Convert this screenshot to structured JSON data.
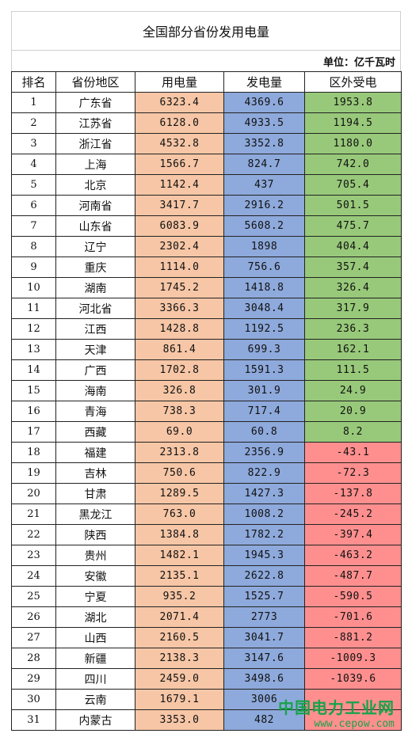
{
  "title": "全国部分省份发用电量",
  "unit": "单位：亿千瓦时",
  "headers": [
    "排名",
    "省份地区",
    "用电量",
    "发电量",
    "区外受电"
  ],
  "colors": {
    "consumption": "#f6c6a6",
    "generation": "#8ea9db",
    "import_positive": "#98c97a",
    "import_negative": "#ff8f8f",
    "watermark": "#17a34a"
  },
  "rows": [
    {
      "rank": "1",
      "region": "广东省",
      "consumption": "6323.4",
      "generation": "4369.6",
      "import": "1953.8"
    },
    {
      "rank": "2",
      "region": "江苏省",
      "consumption": "6128.0",
      "generation": "4933.5",
      "import": "1194.5"
    },
    {
      "rank": "3",
      "region": "浙江省",
      "consumption": "4532.8",
      "generation": "3352.8",
      "import": "1180.0"
    },
    {
      "rank": "4",
      "region": "上海",
      "consumption": "1566.7",
      "generation": "824.7",
      "import": "742.0"
    },
    {
      "rank": "5",
      "region": "北京",
      "consumption": "1142.4",
      "generation": "437",
      "import": "705.4"
    },
    {
      "rank": "6",
      "region": "河南省",
      "consumption": "3417.7",
      "generation": "2916.2",
      "import": "501.5"
    },
    {
      "rank": "7",
      "region": "山东省",
      "consumption": "6083.9",
      "generation": "5608.2",
      "import": "475.7"
    },
    {
      "rank": "8",
      "region": "辽宁",
      "consumption": "2302.4",
      "generation": "1898",
      "import": "404.4"
    },
    {
      "rank": "9",
      "region": "重庆",
      "consumption": "1114.0",
      "generation": "756.6",
      "import": "357.4"
    },
    {
      "rank": "10",
      "region": "湖南",
      "consumption": "1745.2",
      "generation": "1418.8",
      "import": "326.4"
    },
    {
      "rank": "11",
      "region": "河北省",
      "consumption": "3366.3",
      "generation": "3048.4",
      "import": "317.9"
    },
    {
      "rank": "12",
      "region": "江西",
      "consumption": "1428.8",
      "generation": "1192.5",
      "import": "236.3"
    },
    {
      "rank": "13",
      "region": "天津",
      "consumption": "861.4",
      "generation": "699.3",
      "import": "162.1"
    },
    {
      "rank": "14",
      "region": "广西",
      "consumption": "1702.8",
      "generation": "1591.3",
      "import": "111.5"
    },
    {
      "rank": "15",
      "region": "海南",
      "consumption": "326.8",
      "generation": "301.9",
      "import": "24.9"
    },
    {
      "rank": "16",
      "region": "青海",
      "consumption": "738.3",
      "generation": "717.4",
      "import": "20.9"
    },
    {
      "rank": "17",
      "region": "西藏",
      "consumption": "69.0",
      "generation": "60.8",
      "import": "8.2"
    },
    {
      "rank": "18",
      "region": "福建",
      "consumption": "2313.8",
      "generation": "2356.9",
      "import": "-43.1"
    },
    {
      "rank": "19",
      "region": "吉林",
      "consumption": "750.6",
      "generation": "822.9",
      "import": "-72.3"
    },
    {
      "rank": "20",
      "region": "甘肃",
      "consumption": "1289.5",
      "generation": "1427.3",
      "import": "-137.8"
    },
    {
      "rank": "21",
      "region": "黑龙江",
      "consumption": "763.0",
      "generation": "1008.2",
      "import": "-245.2"
    },
    {
      "rank": "22",
      "region": "陕西",
      "consumption": "1384.8",
      "generation": "1782.2",
      "import": "-397.4"
    },
    {
      "rank": "23",
      "region": "贵州",
      "consumption": "1482.1",
      "generation": "1945.3",
      "import": "-463.2"
    },
    {
      "rank": "24",
      "region": "安徽",
      "consumption": "2135.1",
      "generation": "2622.8",
      "import": "-487.7"
    },
    {
      "rank": "25",
      "region": "宁夏",
      "consumption": "935.2",
      "generation": "1525.7",
      "import": "-590.5"
    },
    {
      "rank": "26",
      "region": "湖北",
      "consumption": "2071.4",
      "generation": "2773",
      "import": "-701.6"
    },
    {
      "rank": "27",
      "region": "山西",
      "consumption": "2160.5",
      "generation": "3041.7",
      "import": "-881.2"
    },
    {
      "rank": "28",
      "region": "新疆",
      "consumption": "2138.3",
      "generation": "3147.6",
      "import": "-1009.3"
    },
    {
      "rank": "29",
      "region": "四川",
      "consumption": "2459.0",
      "generation": "3498.6",
      "import": "-1039.6"
    },
    {
      "rank": "30",
      "region": "云南",
      "consumption": "1679.1",
      "generation": "3006",
      "import": ""
    },
    {
      "rank": "31",
      "region": "内蒙古",
      "consumption": "3353.0",
      "generation": "482",
      "import": ""
    }
  ],
  "watermark": {
    "title": "中国电力工业网",
    "url": "www.cepow.com"
  }
}
